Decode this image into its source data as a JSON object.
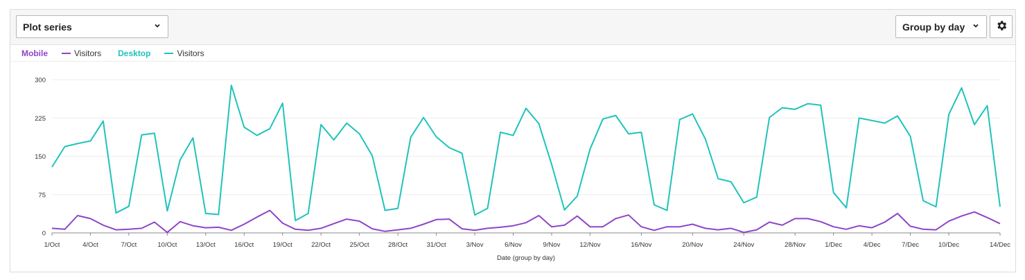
{
  "toolbar": {
    "plot_series_label": "Plot series",
    "group_by_label": "Group by day",
    "settings_icon": "gear-icon"
  },
  "legend": {
    "groups": [
      {
        "name": "Mobile",
        "item": "Visitors",
        "color": "#8e44c9"
      },
      {
        "name": "Desktop",
        "item": "Visitors",
        "color": "#1ec3bb"
      }
    ]
  },
  "chart_data": {
    "type": "line",
    "xlabel": "Date (group by day)",
    "ylabel": "",
    "ylim": [
      0,
      300
    ],
    "yticks": [
      0,
      75,
      150,
      225,
      300
    ],
    "grid": true,
    "x": [
      "1/Oct",
      "2/Oct",
      "3/Oct",
      "4/Oct",
      "5/Oct",
      "6/Oct",
      "7/Oct",
      "8/Oct",
      "9/Oct",
      "10/Oct",
      "11/Oct",
      "12/Oct",
      "13/Oct",
      "14/Oct",
      "15/Oct",
      "16/Oct",
      "17/Oct",
      "18/Oct",
      "19/Oct",
      "20/Oct",
      "21/Oct",
      "22/Oct",
      "23/Oct",
      "24/Oct",
      "25/Oct",
      "26/Oct",
      "27/Oct",
      "28/Oct",
      "29/Oct",
      "30/Oct",
      "31/Oct",
      "1/Nov",
      "2/Nov",
      "3/Nov",
      "4/Nov",
      "5/Nov",
      "6/Nov",
      "7/Nov",
      "8/Nov",
      "9/Nov",
      "10/Nov",
      "11/Nov",
      "12/Nov",
      "13/Nov",
      "14/Nov",
      "15/Nov",
      "16/Nov",
      "17/Nov",
      "18/Nov",
      "19/Nov",
      "20/Nov",
      "21/Nov",
      "22/Nov",
      "23/Nov",
      "24/Nov",
      "25/Nov",
      "26/Nov",
      "27/Nov",
      "28/Nov",
      "29/Nov",
      "30/Nov",
      "1/Dec",
      "2/Dec",
      "3/Dec",
      "4/Dec",
      "5/Dec",
      "6/Dec",
      "7/Dec",
      "8/Dec",
      "9/Dec",
      "10/Dec",
      "11/Dec",
      "12/Dec",
      "13/Dec",
      "14/Dec"
    ],
    "xtick_labels": [
      "1/Oct",
      "4/Oct",
      "7/Oct",
      "10/Oct",
      "13/Oct",
      "16/Oct",
      "19/Oct",
      "22/Oct",
      "25/Oct",
      "28/Oct",
      "31/Oct",
      "3/Nov",
      "6/Nov",
      "9/Nov",
      "12/Nov",
      "16/Nov",
      "20/Nov",
      "24/Nov",
      "28/Nov",
      "1/Dec",
      "4/Dec",
      "7/Dec",
      "10/Dec",
      "14/Dec"
    ],
    "series": [
      {
        "name": "Visitors",
        "color": "#8e44c9",
        "values": [
          9,
          7,
          34,
          28,
          15,
          6,
          7,
          9,
          21,
          1,
          22,
          14,
          10,
          11,
          5,
          17,
          31,
          44,
          19,
          7,
          5,
          9,
          18,
          27,
          23,
          8,
          3,
          6,
          9,
          17,
          26,
          27,
          8,
          5,
          9,
          11,
          14,
          20,
          34,
          12,
          15,
          33,
          12,
          12,
          28,
          35,
          12,
          5,
          12,
          12,
          17,
          9,
          6,
          9,
          1,
          6,
          21,
          15,
          28,
          28,
          22,
          12,
          7,
          14,
          10,
          21,
          38,
          13,
          7,
          6,
          23,
          33,
          41,
          30,
          18
        ]
      },
      {
        "name": "Visitors",
        "color": "#1ec3bb",
        "values": [
          129,
          169,
          175,
          180,
          219,
          39,
          52,
          192,
          195,
          43,
          143,
          186,
          38,
          36,
          289,
          207,
          191,
          204,
          254,
          24,
          38,
          212,
          182,
          215,
          194,
          151,
          44,
          48,
          187,
          226,
          188,
          167,
          156,
          35,
          48,
          197,
          191,
          244,
          214,
          134,
          45,
          72,
          164,
          223,
          230,
          194,
          197,
          55,
          44,
          222,
          233,
          184,
          106,
          100,
          59,
          70,
          226,
          245,
          242,
          253,
          250,
          79,
          49,
          225,
          220,
          215,
          229,
          189,
          63,
          51,
          232,
          284,
          212,
          249,
          51
        ]
      }
    ]
  }
}
